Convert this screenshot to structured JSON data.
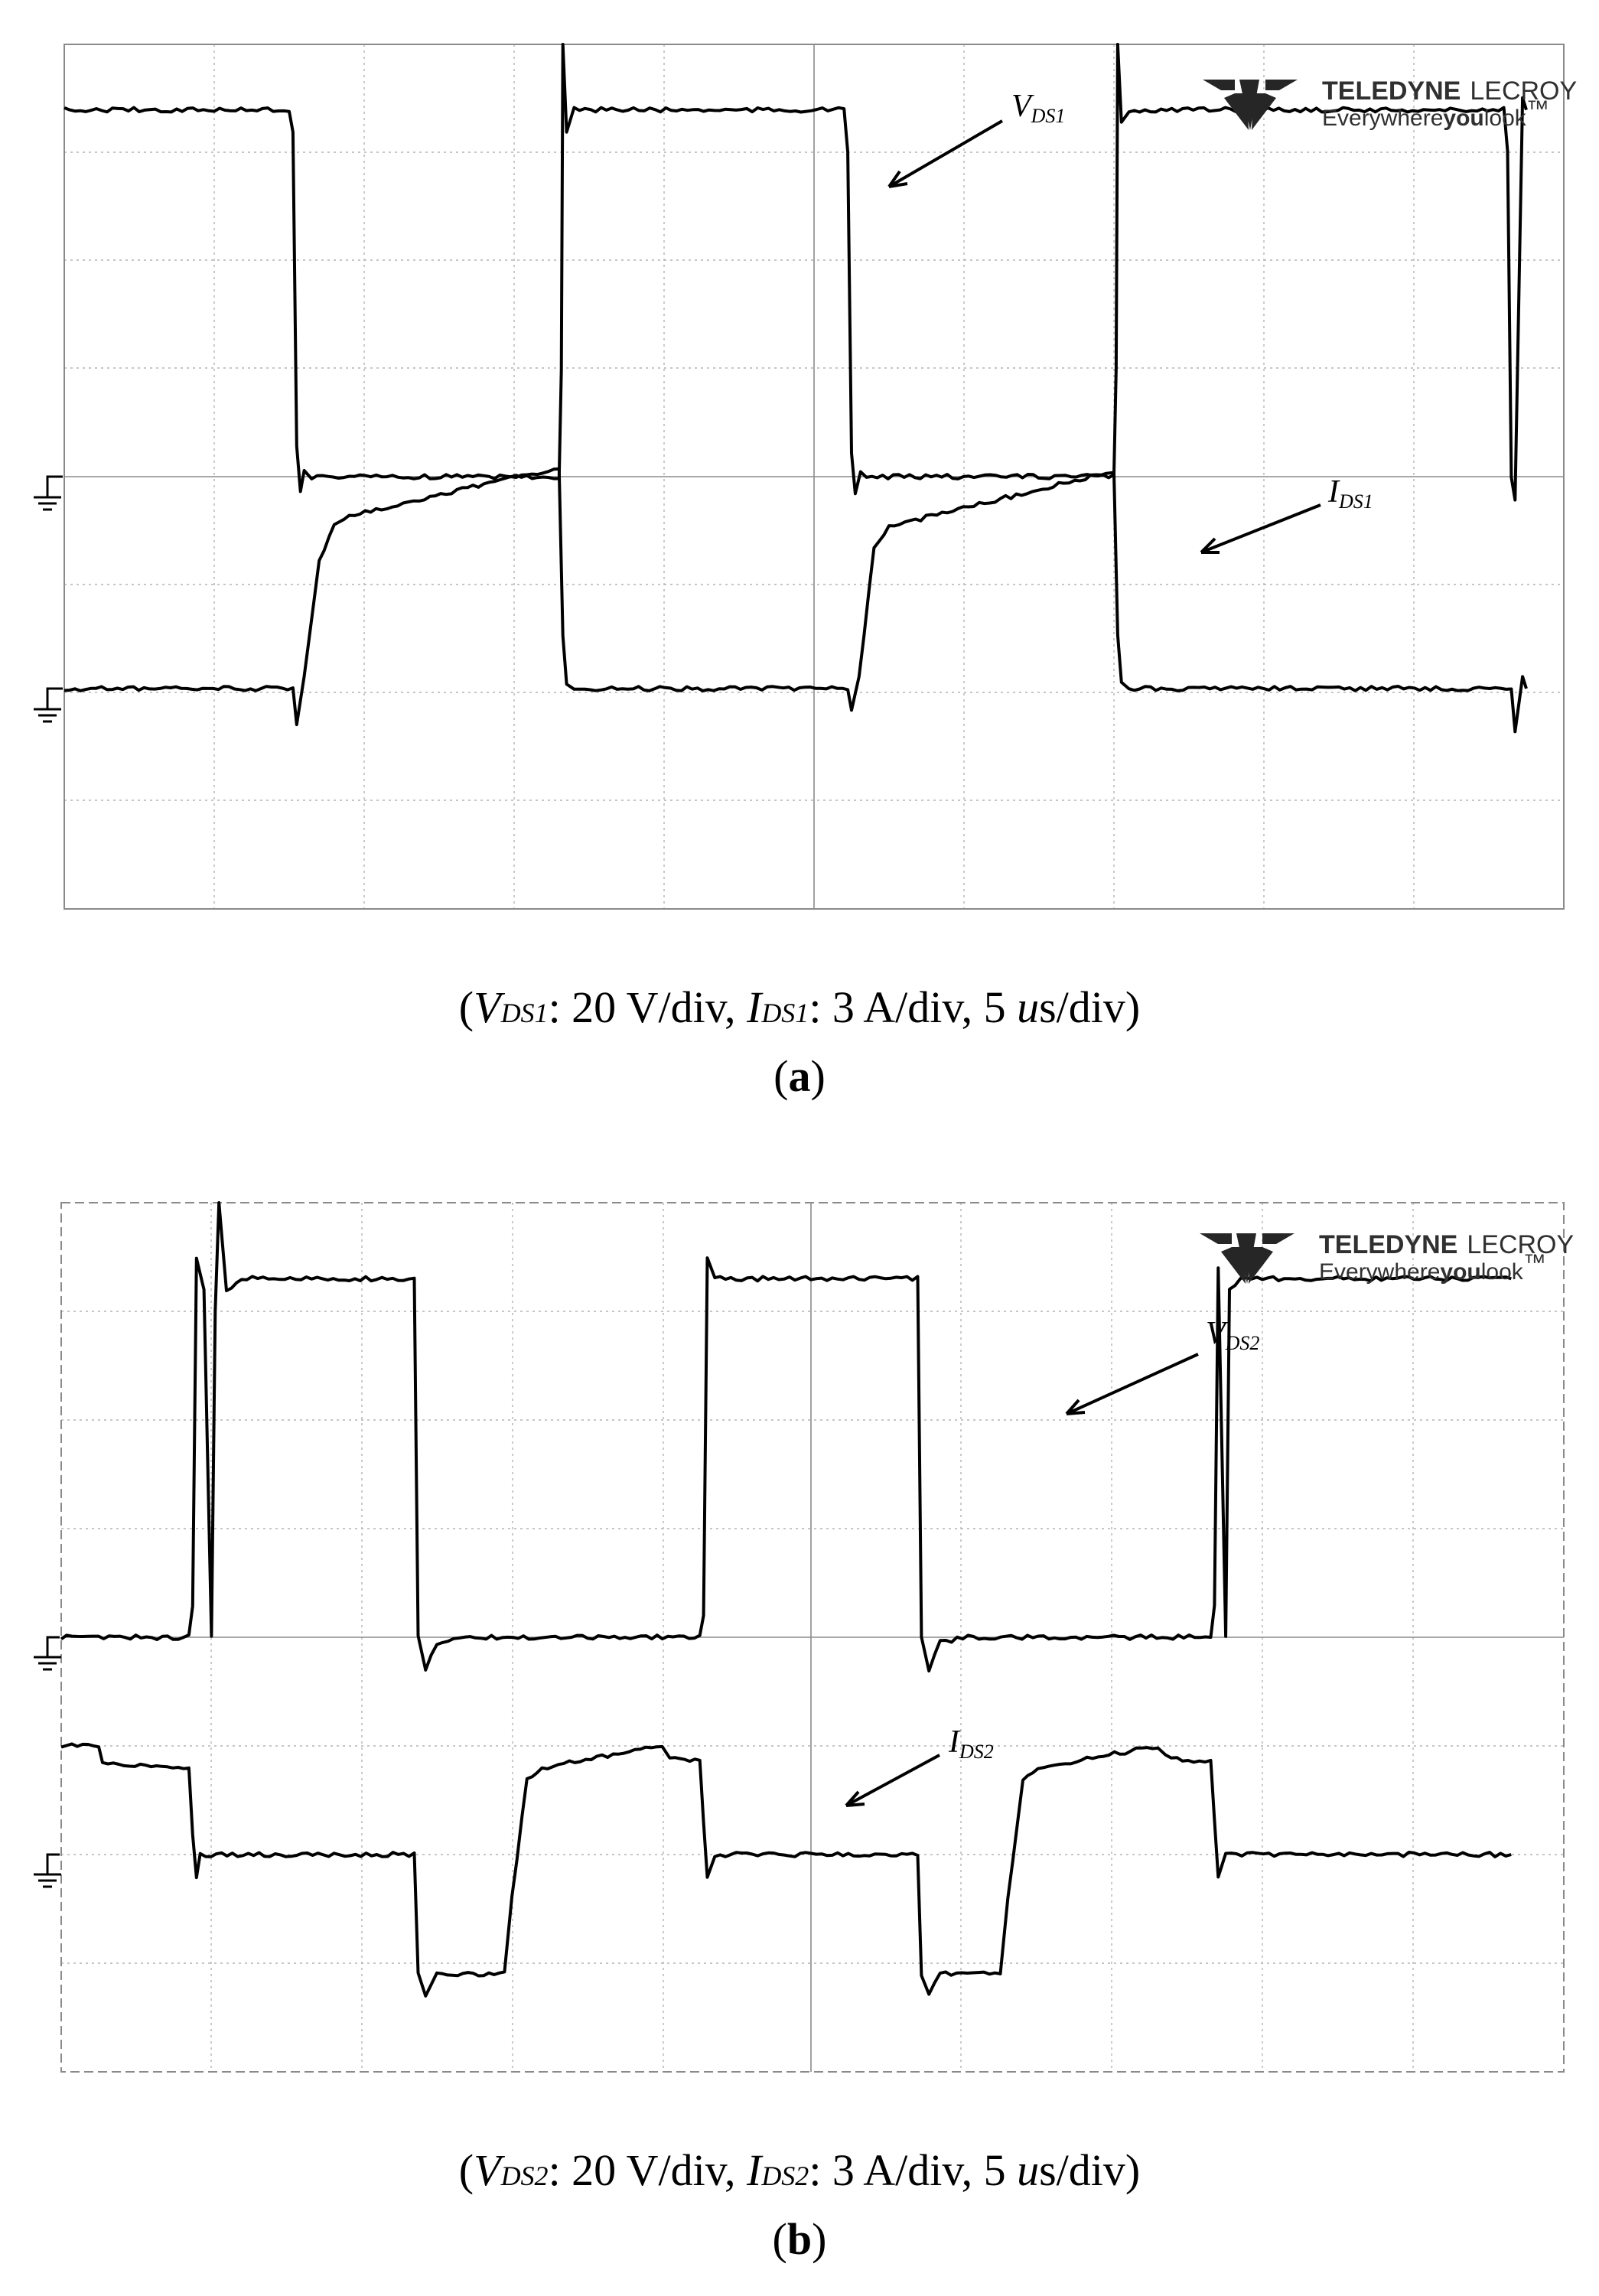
{
  "chart_data": [
    {
      "type": "line",
      "panel": "a",
      "brand": {
        "name_bold": "TELEDYNE",
        "name_light": "LECROY",
        "tagline_a": "Everywhere",
        "tagline_b": "you",
        "tagline_c": "look",
        "tm": "™"
      },
      "caption": {
        "open": "(",
        "v_main": "V",
        "v_sub": "DS1",
        "v_scale": ": 20 V/div, ",
        "i_main": "I",
        "i_sub": "DS1",
        "i_scale": ": 3 A/div, ",
        "time_num": "5 ",
        "time_unit_it": "u",
        "time_unit": "s/div)",
        "letter": "a"
      },
      "series": [
        {
          "name_main": "V",
          "name_sub": "DS1",
          "units": "div",
          "points": [
            [
              0,
              3.4
            ],
            [
              3.0,
              3.4
            ],
            [
              3.05,
              3.2
            ],
            [
              3.1,
              0.3
            ],
            [
              3.15,
              -0.15
            ],
            [
              3.2,
              0.05
            ],
            [
              3.3,
              0.0
            ],
            [
              6.6,
              0.0
            ],
            [
              6.63,
              1.0
            ],
            [
              6.65,
              4.9
            ],
            [
              6.7,
              3.2
            ],
            [
              6.8,
              3.4
            ],
            [
              10.4,
              3.4
            ],
            [
              10.45,
              3.0
            ],
            [
              10.5,
              0.2
            ],
            [
              10.55,
              -0.15
            ],
            [
              10.62,
              0.05
            ],
            [
              10.7,
              0.0
            ],
            [
              14.0,
              0.0
            ],
            [
              14.03,
              1.0
            ],
            [
              14.05,
              4.3
            ],
            [
              14.1,
              3.3
            ],
            [
              14.2,
              3.4
            ],
            [
              19.2,
              3.4
            ],
            [
              19.25,
              3.0
            ],
            [
              19.3,
              0.0
            ],
            [
              19.35,
              -0.2
            ],
            [
              19.45,
              3.5
            ],
            [
              19.5,
              3.4
            ]
          ]
        },
        {
          "name_main": "I",
          "name_sub": "DS1",
          "units": "div",
          "points": [
            [
              0,
              0.0
            ],
            [
              3.05,
              0.0
            ],
            [
              3.1,
              -0.35
            ],
            [
              3.2,
              0.1
            ],
            [
              3.4,
              1.2
            ],
            [
              3.6,
              1.5
            ],
            [
              3.8,
              1.6
            ],
            [
              6.6,
              2.05
            ],
            [
              6.65,
              0.5
            ],
            [
              6.7,
              0.05
            ],
            [
              6.8,
              0.0
            ],
            [
              10.45,
              0.0
            ],
            [
              10.5,
              -0.2
            ],
            [
              10.6,
              0.1
            ],
            [
              10.8,
              1.3
            ],
            [
              11.0,
              1.5
            ],
            [
              13.9,
              2.0
            ],
            [
              14.0,
              2.0
            ],
            [
              14.05,
              0.5
            ],
            [
              14.1,
              0.05
            ],
            [
              14.2,
              0.0
            ],
            [
              19.3,
              0.0
            ],
            [
              19.35,
              -0.4
            ],
            [
              19.45,
              0.1
            ],
            [
              19.5,
              0.0
            ]
          ]
        }
      ]
    },
    {
      "type": "line",
      "panel": "b",
      "brand": {
        "name_bold": "TELEDYNE",
        "name_light": "LECROY",
        "tagline_a": "Everywhere",
        "tagline_b": "you",
        "tagline_c": "look",
        "tm": "™"
      },
      "caption": {
        "open": "(",
        "v_main": "V",
        "v_sub": "DS2",
        "v_scale": ": 20 V/div, ",
        "i_main": "I",
        "i_sub": "DS2",
        "i_scale": ": 3 A/div, ",
        "time_num": "5 ",
        "time_unit_it": "u",
        "time_unit": "s/div)",
        "letter": "b"
      },
      "series": [
        {
          "name_main": "V",
          "name_sub": "DS2",
          "units": "div",
          "points": [
            [
              0,
              0.0
            ],
            [
              1.7,
              0.0
            ],
            [
              1.75,
              0.3
            ],
            [
              1.8,
              3.5
            ],
            [
              1.9,
              3.2
            ],
            [
              2.0,
              0.0
            ],
            [
              2.05,
              3.0
            ],
            [
              2.1,
              4.2
            ],
            [
              2.2,
              3.2
            ],
            [
              2.4,
              3.3
            ],
            [
              4.7,
              3.3
            ],
            [
              4.75,
              0.0
            ],
            [
              4.85,
              -0.3
            ],
            [
              5.0,
              -0.05
            ],
            [
              5.3,
              0.0
            ],
            [
              8.5,
              0.0
            ],
            [
              8.55,
              0.2
            ],
            [
              8.6,
              3.5
            ],
            [
              8.7,
              3.3
            ],
            [
              11.4,
              3.3
            ],
            [
              11.45,
              0.0
            ],
            [
              11.55,
              -0.3
            ],
            [
              11.7,
              -0.05
            ],
            [
              12.0,
              0.0
            ],
            [
              15.3,
              0.0
            ],
            [
              15.35,
              0.3
            ],
            [
              15.4,
              3.4
            ],
            [
              15.5,
              0.0
            ],
            [
              15.55,
              3.2
            ],
            [
              15.7,
              3.3
            ],
            [
              19.3,
              3.3
            ]
          ]
        },
        {
          "name_main": "I",
          "name_sub": "DS2",
          "units": "div",
          "points": [
            [
              0,
              1.0
            ],
            [
              0.5,
              1.0
            ],
            [
              0.55,
              0.85
            ],
            [
              1.7,
              0.8
            ],
            [
              1.75,
              0.2
            ],
            [
              1.8,
              -0.2
            ],
            [
              1.85,
              0.0
            ],
            [
              4.7,
              0.0
            ],
            [
              4.75,
              -1.1
            ],
            [
              4.85,
              -1.3
            ],
            [
              5.0,
              -1.1
            ],
            [
              5.9,
              -1.1
            ],
            [
              6.0,
              -0.4
            ],
            [
              6.2,
              0.7
            ],
            [
              6.4,
              0.8
            ],
            [
              8.0,
              1.0
            ],
            [
              8.1,
              0.9
            ],
            [
              8.5,
              0.85
            ],
            [
              8.55,
              0.3
            ],
            [
              8.6,
              -0.2
            ],
            [
              8.7,
              0.0
            ],
            [
              11.4,
              0.0
            ],
            [
              11.45,
              -1.1
            ],
            [
              11.55,
              -1.3
            ],
            [
              11.7,
              -1.1
            ],
            [
              12.5,
              -1.1
            ],
            [
              12.6,
              -0.4
            ],
            [
              12.8,
              0.7
            ],
            [
              13.0,
              0.8
            ],
            [
              14.6,
              1.0
            ],
            [
              14.7,
              0.9
            ],
            [
              15.3,
              0.85
            ],
            [
              15.35,
              0.3
            ],
            [
              15.4,
              -0.2
            ],
            [
              15.5,
              0.0
            ],
            [
              19.3,
              0.0
            ]
          ]
        }
      ]
    }
  ]
}
